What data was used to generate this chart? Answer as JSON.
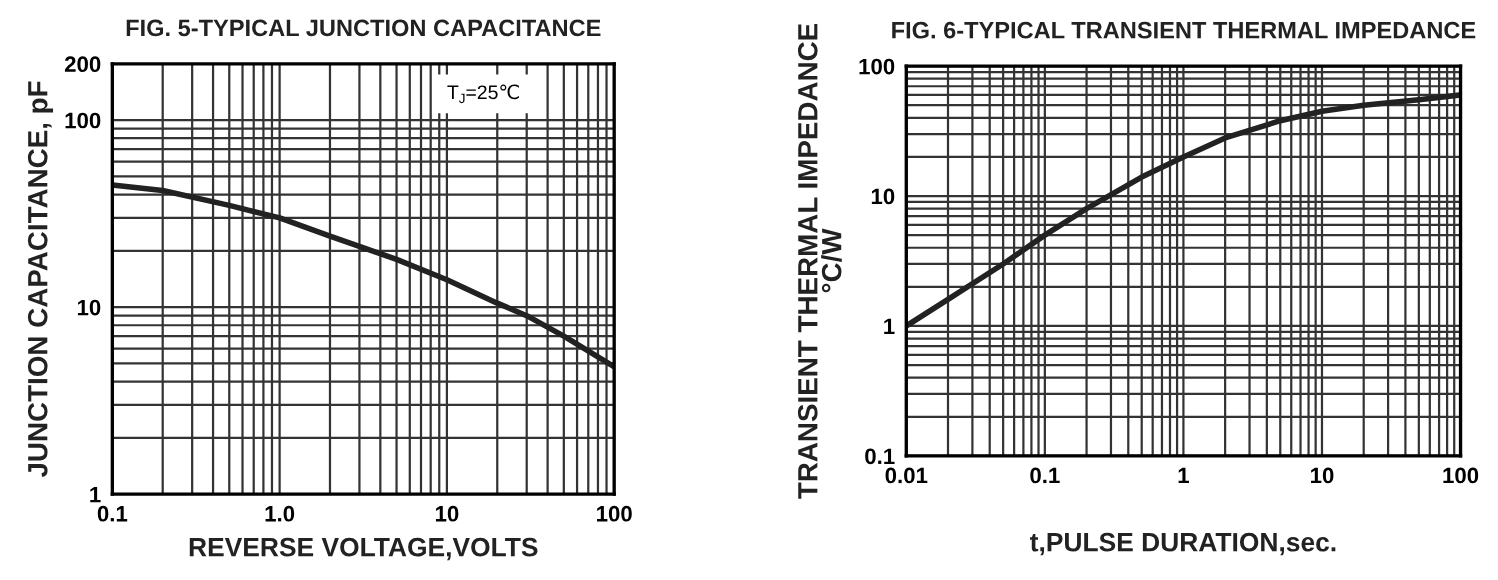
{
  "chart_data": [
    {
      "type": "line",
      "title": "FIG. 5-TYPICAL JUNCTION CAPACITANCE",
      "xlabel": "REVERSE VOLTAGE,VOLTS",
      "ylabel": "JUNCTION CAPACITANCE, pF",
      "log": "xy",
      "grid": true,
      "line_style": "solid",
      "marker": "none",
      "annotations": [
        "T$_{J}$=25℃"
      ],
      "x": [
        0.1,
        0.2,
        0.5,
        1,
        2,
        5,
        10,
        20,
        30,
        50,
        100
      ],
      "series": [
        {
          "color": "#222222",
          "values": [
            45,
            42,
            35,
            30,
            24,
            18,
            14,
            10.5,
            9,
            7,
            4.8
          ]
        }
      ],
      "xlim": [
        0.1,
        100
      ],
      "ylim": [
        1,
        200
      ],
      "xticks": [
        0.1,
        {
          "value": 1,
          "label": "1.0"
        },
        10,
        100
      ],
      "yticks": [
        1,
        10,
        100,
        200
      ]
    },
    {
      "type": "line",
      "title": "FIG. 6-TYPICAL TRANSIENT THERMAL IMPEDANCE",
      "xlabel": "t,PULSE DURATION,sec.",
      "ylabel": "TRANSIENT THERMAL IMPEDANCE\n°C/W",
      "log": "xy",
      "grid": true,
      "line_style": "solid",
      "marker": "none",
      "x": [
        0.01,
        0.02,
        0.05,
        0.1,
        0.2,
        0.5,
        1,
        2,
        5,
        10,
        20,
        50,
        100
      ],
      "series": [
        {
          "color": "#222222",
          "values": [
            1,
            1.6,
            3,
            5,
            8,
            14,
            20,
            28,
            38,
            45,
            50,
            55,
            60
          ]
        }
      ],
      "xlim": [
        0.01,
        100
      ],
      "ylim": [
        0.1,
        100
      ],
      "xticks": [
        0.01,
        0.1,
        1,
        10,
        100
      ],
      "yticks": [
        0.1,
        1,
        10,
        100
      ]
    }
  ]
}
